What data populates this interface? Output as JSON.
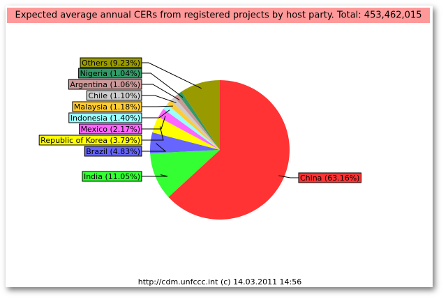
{
  "chart_data": {
    "type": "pie",
    "title": "Expected average annual CERs from registered projects by host party. Total: 453,462,015",
    "footer": "http://cdm.unfccc.int (c) 14.03.2011 14:56",
    "values": [
      63.16,
      11.05,
      4.83,
      3.79,
      2.17,
      1.4,
      1.18,
      1.1,
      1.06,
      1.04,
      9.23
    ],
    "value_labels": [
      "China (63.16%)",
      "India (11.05%)",
      "Brazil (4.83%)",
      "Republic of Korea (3.79%)",
      "Mexico (2.17%)",
      "Indonesia (1.40%)",
      "Malaysia (1.18%)",
      "Chile (1.10%)",
      "Argentina (1.06%)",
      "Nigeria (1.04%)",
      "Others (9.23%)"
    ],
    "colors": [
      "#ff3333",
      "#33ff33",
      "#6666ff",
      "#ffff00",
      "#ff66ff",
      "#99ffff",
      "#ffcc33",
      "#cccccc",
      "#cc9999",
      "#339966",
      "#999900"
    ],
    "start_angle": 90,
    "direction": "clockwise"
  }
}
